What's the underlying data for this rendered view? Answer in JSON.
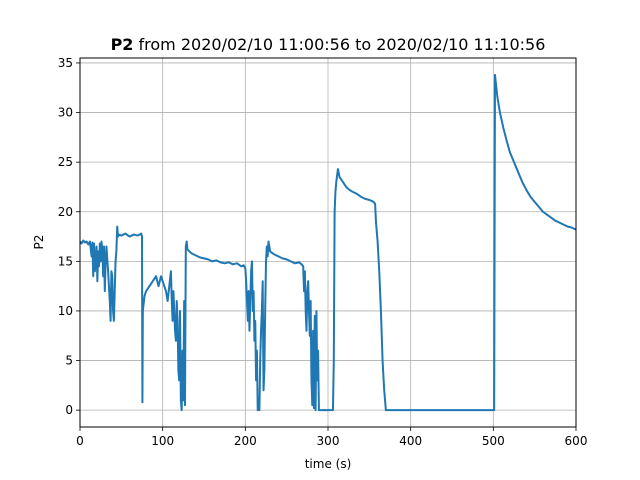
{
  "chart_data": {
    "type": "line",
    "title_bold": "P2",
    "title_rest": " from 2020/02/10 11:00:56 to 2020/02/10 11:10:56",
    "xlabel": "time (s)",
    "ylabel": "P2",
    "xlim": [
      0,
      600
    ],
    "ylim": [
      -1.7,
      35.5
    ],
    "xticks": [
      0,
      100,
      200,
      300,
      400,
      500,
      600
    ],
    "yticks": [
      0,
      5,
      10,
      15,
      20,
      25,
      30,
      35
    ],
    "grid": true,
    "line_color": "#1f77b4",
    "series": [
      {
        "points": [
          [
            0,
            17.0
          ],
          [
            2,
            16.8
          ],
          [
            4,
            17.1
          ],
          [
            6,
            16.9
          ],
          [
            8,
            17.0
          ],
          [
            10,
            16.7
          ],
          [
            12,
            17.0
          ],
          [
            14,
            15.5
          ],
          [
            15,
            16.9
          ],
          [
            16,
            13.5
          ],
          [
            17,
            16.8
          ],
          [
            18,
            14.0
          ],
          [
            19,
            15.2
          ],
          [
            20,
            16.5
          ],
          [
            21,
            13.0
          ],
          [
            22,
            16.0
          ],
          [
            23,
            14.5
          ],
          [
            24,
            16.8
          ],
          [
            25,
            15.0
          ],
          [
            26,
            17.0
          ],
          [
            27,
            16.2
          ],
          [
            28,
            13.5
          ],
          [
            29,
            16.5
          ],
          [
            30,
            12.0
          ],
          [
            31,
            15.0
          ],
          [
            32,
            16.5
          ],
          [
            33,
            15.2
          ],
          [
            34,
            14.0
          ],
          [
            35,
            12.5
          ],
          [
            36,
            11.0
          ],
          [
            37,
            9.0
          ],
          [
            38,
            14.0
          ],
          [
            39,
            13.5
          ],
          [
            40,
            10.0
          ],
          [
            41,
            9.0
          ],
          [
            42,
            12.0
          ],
          [
            43,
            15.0
          ],
          [
            44,
            16.0
          ],
          [
            45,
            18.5
          ],
          [
            46,
            17.5
          ],
          [
            47,
            17.7
          ],
          [
            50,
            17.6
          ],
          [
            55,
            17.8
          ],
          [
            60,
            17.5
          ],
          [
            65,
            17.7
          ],
          [
            70,
            17.6
          ],
          [
            74,
            17.8
          ],
          [
            75,
            17.5
          ],
          [
            75.5,
            0.8
          ],
          [
            76,
            10.0
          ],
          [
            78,
            11.5
          ],
          [
            80,
            12.0
          ],
          [
            84,
            12.5
          ],
          [
            88,
            13.0
          ],
          [
            92,
            13.5
          ],
          [
            95,
            12.5
          ],
          [
            98,
            13.5
          ],
          [
            100,
            13.0
          ],
          [
            102,
            12.5
          ],
          [
            104,
            12.0
          ],
          [
            106,
            11.0
          ],
          [
            108,
            12.5
          ],
          [
            110,
            14.0
          ],
          [
            111,
            11.0
          ],
          [
            112,
            9.0
          ],
          [
            113,
            12.0
          ],
          [
            114,
            10.0
          ],
          [
            115,
            8.0
          ],
          [
            116,
            7.0
          ],
          [
            117,
            11.0
          ],
          [
            118,
            9.0
          ],
          [
            119,
            4.0
          ],
          [
            120,
            3.0
          ],
          [
            121,
            10.0
          ],
          [
            122,
            1.0
          ],
          [
            123,
            0.0
          ],
          [
            124,
            6.0
          ],
          [
            125,
            1.0
          ],
          [
            126,
            11.0
          ],
          [
            127,
            0.5
          ],
          [
            128,
            16.5
          ],
          [
            129,
            17.0
          ],
          [
            130,
            16.2
          ],
          [
            135,
            15.8
          ],
          [
            140,
            15.6
          ],
          [
            145,
            15.4
          ],
          [
            150,
            15.3
          ],
          [
            155,
            15.2
          ],
          [
            160,
            15.0
          ],
          [
            165,
            15.1
          ],
          [
            170,
            14.9
          ],
          [
            175,
            14.8
          ],
          [
            180,
            14.9
          ],
          [
            185,
            14.7
          ],
          [
            190,
            14.8
          ],
          [
            195,
            14.5
          ],
          [
            198,
            14.6
          ],
          [
            200,
            14.3
          ],
          [
            201,
            13.0
          ],
          [
            202,
            11.0
          ],
          [
            203,
            9.0
          ],
          [
            204,
            12.0
          ],
          [
            205,
            8.0
          ],
          [
            206,
            11.0
          ],
          [
            207,
            14.0
          ],
          [
            208,
            15.0
          ],
          [
            209,
            10.0
          ],
          [
            210,
            12.0
          ],
          [
            211,
            7.0
          ],
          [
            212,
            9.0
          ],
          [
            213,
            3.0
          ],
          [
            214,
            6.0
          ],
          [
            215,
            0.0
          ],
          [
            216,
            1.0
          ],
          [
            217,
            0.0
          ],
          [
            218,
            5.0
          ],
          [
            219,
            8.0
          ],
          [
            220,
            10.0
          ],
          [
            221,
            13.0
          ],
          [
            222,
            2.0
          ],
          [
            223,
            4.0
          ],
          [
            224,
            10.0
          ],
          [
            225,
            15.0
          ],
          [
            226,
            16.5
          ],
          [
            227,
            15.5
          ],
          [
            228,
            17.0
          ],
          [
            230,
            16.0
          ],
          [
            235,
            15.7
          ],
          [
            240,
            15.5
          ],
          [
            245,
            15.3
          ],
          [
            250,
            15.2
          ],
          [
            255,
            15.0
          ],
          [
            260,
            14.8
          ],
          [
            265,
            14.9
          ],
          [
            268,
            14.7
          ],
          [
            270,
            14.5
          ],
          [
            271,
            12.0
          ],
          [
            272,
            14.0
          ],
          [
            273,
            10.0
          ],
          [
            274,
            8.0
          ],
          [
            275,
            12.0
          ],
          [
            276,
            13.0
          ],
          [
            277,
            10.0
          ],
          [
            278,
            7.5
          ],
          [
            279,
            11.0
          ],
          [
            280,
            3.0
          ],
          [
            281,
            0.5
          ],
          [
            282,
            8.0
          ],
          [
            283,
            0.2
          ],
          [
            284,
            9.5
          ],
          [
            285,
            0.0
          ],
          [
            286,
            10.0
          ],
          [
            287,
            3.0
          ],
          [
            288,
            6.0
          ],
          [
            289,
            0.0
          ],
          [
            290,
            0.0
          ],
          [
            295,
            0.0
          ],
          [
            300,
            0.0
          ],
          [
            305,
            0.0
          ],
          [
            306,
            0.0
          ],
          [
            307,
            5.0
          ],
          [
            308,
            20.0
          ],
          [
            309,
            22.0
          ],
          [
            310,
            23.0
          ],
          [
            312,
            24.3
          ],
          [
            314,
            23.5
          ],
          [
            318,
            23.0
          ],
          [
            322,
            22.5
          ],
          [
            326,
            22.2
          ],
          [
            330,
            22.0
          ],
          [
            335,
            21.8
          ],
          [
            340,
            21.5
          ],
          [
            345,
            21.3
          ],
          [
            350,
            21.2
          ],
          [
            355,
            21.0
          ],
          [
            357,
            20.8
          ],
          [
            358,
            19.0
          ],
          [
            359,
            18.0
          ],
          [
            360,
            17.0
          ],
          [
            362,
            14.0
          ],
          [
            364,
            10.0
          ],
          [
            366,
            5.0
          ],
          [
            368,
            2.0
          ],
          [
            370,
            0.0
          ],
          [
            380,
            0.0
          ],
          [
            400,
            0.0
          ],
          [
            420,
            0.0
          ],
          [
            440,
            0.0
          ],
          [
            460,
            0.0
          ],
          [
            480,
            0.0
          ],
          [
            500,
            0.0
          ],
          [
            501,
            0.0
          ],
          [
            502,
            33.8
          ],
          [
            503,
            33.0
          ],
          [
            505,
            31.5
          ],
          [
            508,
            30.0
          ],
          [
            512,
            28.5
          ],
          [
            516,
            27.2
          ],
          [
            520,
            26.0
          ],
          [
            525,
            25.0
          ],
          [
            530,
            24.0
          ],
          [
            535,
            23.0
          ],
          [
            540,
            22.2
          ],
          [
            545,
            21.5
          ],
          [
            550,
            21.0
          ],
          [
            555,
            20.5
          ],
          [
            560,
            20.0
          ],
          [
            565,
            19.7
          ],
          [
            570,
            19.4
          ],
          [
            575,
            19.1
          ],
          [
            580,
            18.9
          ],
          [
            585,
            18.7
          ],
          [
            590,
            18.5
          ],
          [
            595,
            18.4
          ],
          [
            600,
            18.2
          ]
        ]
      }
    ]
  }
}
